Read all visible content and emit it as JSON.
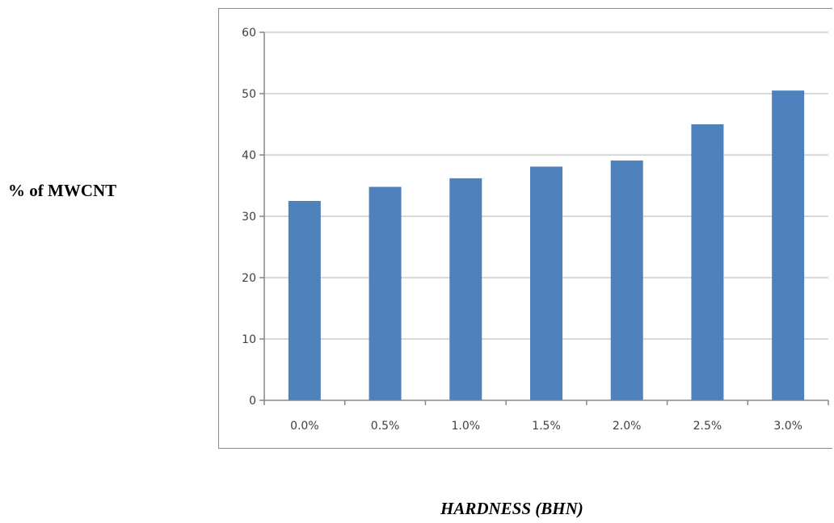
{
  "labels": {
    "y_label": "% of MWCNT",
    "x_label": "HARDNESS (BHN)"
  },
  "chart_data": {
    "type": "bar",
    "categories": [
      "0.0%",
      "0.5%",
      "1.0%",
      "1.5%",
      "2.0%",
      "2.5%",
      "3.0%"
    ],
    "series": [
      {
        "values": [
          32.5,
          34.8,
          36.2,
          38.1,
          39.1,
          45.0,
          50.5
        ]
      }
    ],
    "ylim": [
      0,
      60
    ],
    "yticks": [
      0,
      10,
      20,
      30,
      40,
      50,
      60
    ],
    "grid": true,
    "xlabel": "HARDNESS (BHN)",
    "ylabel": "% of MWCNT",
    "bar_color": "#4f81bd",
    "grid_color": "#d9d9d9",
    "axis_color": "#868686"
  }
}
